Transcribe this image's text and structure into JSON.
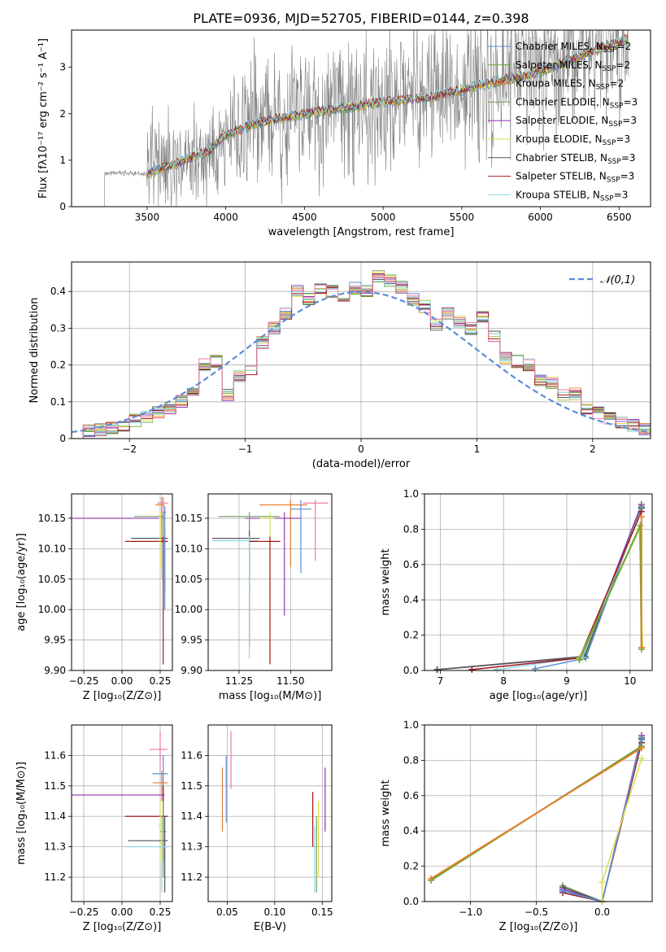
{
  "title": "PLATE=0936, MJD=52705, FIBERID=0144, z=0.398",
  "colors": {
    "Chabrier MILES": "#5b8cd6",
    "Salpeter MILES": "#6aa832",
    "Kroupa MILES": "#e67e2e",
    "Chabrier ELODIE": "#7a9e5f",
    "Salpeter ELODIE": "#8e35b8",
    "Kroupa ELODIE": "#d8e04a",
    "Chabrier STELIB": "#555555",
    "Salpeter STELIB": "#a01818",
    "Kroupa STELIB": "#8ed8e8",
    "pink": "#f07aa8",
    "data": "#808080",
    "normal": "#5b8cd6"
  },
  "chart_data": [
    {
      "type": "line",
      "xlabel": "wavelength [Angstrom, rest frame]",
      "ylabel": "Flux [fλ10⁻¹⁷ erg cm⁻² s⁻¹ A⁻¹]",
      "xlim": [
        3020,
        6700
      ],
      "ylim": [
        0,
        3.8
      ],
      "xticks": [
        3500,
        4000,
        4500,
        5000,
        5500,
        6000,
        6500
      ],
      "yticks": [
        0,
        1,
        2,
        3
      ],
      "legend_position": "top-right",
      "legend": [
        {
          "label": "Chabrier MILES, N",
          "sub": "SSP",
          "tail": "=2",
          "key": "Chabrier MILES"
        },
        {
          "label": "Salpeter MILES, N",
          "sub": "SSP",
          "tail": "=2",
          "key": "Salpeter MILES"
        },
        {
          "label": "Kroupa MILES, N",
          "sub": "SSP",
          "tail": "=2",
          "key": "Kroupa MILES"
        },
        {
          "label": "Chabrier ELODIE, N",
          "sub": "SSP",
          "tail": "=3",
          "key": "Chabrier ELODIE"
        },
        {
          "label": "Salpeter ELODIE, N",
          "sub": "SSP",
          "tail": "=3",
          "key": "Salpeter ELODIE"
        },
        {
          "label": "Kroupa ELODIE, N",
          "sub": "SSP",
          "tail": "=3",
          "key": "Kroupa ELODIE"
        },
        {
          "label": "Chabrier STELIB, N",
          "sub": "SSP",
          "tail": "=3",
          "key": "Chabrier STELIB"
        },
        {
          "label": "Salpeter STELIB, N",
          "sub": "SSP",
          "tail": "=3",
          "key": "Salpeter STELIB"
        },
        {
          "label": "Kroupa STELIB, N",
          "sub": "SSP",
          "tail": "=3",
          "key": "Kroupa STELIB"
        }
      ],
      "model_trend": [
        [
          3230,
          0.72
        ],
        [
          3500,
          0.72
        ],
        [
          3700,
          0.95
        ],
        [
          3900,
          1.2
        ],
        [
          4000,
          1.55
        ],
        [
          4200,
          1.8
        ],
        [
          4500,
          2.0
        ],
        [
          4800,
          2.15
        ],
        [
          5000,
          2.25
        ],
        [
          5300,
          2.35
        ],
        [
          5600,
          2.6
        ],
        [
          6000,
          2.9
        ],
        [
          6300,
          3.3
        ],
        [
          6550,
          3.6
        ]
      ]
    },
    {
      "type": "line",
      "xlabel": "(data-model)/error",
      "ylabel": "Normed distribution",
      "xlim": [
        -2.5,
        2.5
      ],
      "ylim": [
        0,
        0.48
      ],
      "xticks": [
        -2,
        -1,
        0,
        1,
        2
      ],
      "yticks": [
        0.0,
        0.1,
        0.2,
        0.3,
        0.4
      ],
      "legend_label": "𝒩(0,1)",
      "hist_bins": [
        -2.5,
        -2.4,
        -2.3,
        -2.2,
        -2.1,
        -2.0,
        -1.9,
        -1.8,
        -1.7,
        -1.6,
        -1.5,
        -1.4,
        -1.3,
        -1.2,
        -1.1,
        -1.0,
        -0.9,
        -0.8,
        -0.7,
        -0.6,
        -0.5,
        -0.4,
        -0.3,
        -0.2,
        -0.1,
        0.0,
        0.1,
        0.2,
        0.3,
        0.4,
        0.5,
        0.6,
        0.7,
        0.8,
        0.9,
        1.0,
        1.1,
        1.2,
        1.3,
        1.4,
        1.5,
        1.6,
        1.7,
        1.8,
        1.9,
        2.0,
        2.1,
        2.2,
        2.3,
        2.4,
        2.5
      ],
      "hist_values": [
        0.015,
        0.02,
        0.025,
        0.03,
        0.035,
        0.05,
        0.06,
        0.07,
        0.08,
        0.1,
        0.13,
        0.2,
        0.21,
        0.12,
        0.17,
        0.19,
        0.26,
        0.3,
        0.34,
        0.4,
        0.38,
        0.41,
        0.4,
        0.38,
        0.41,
        0.4,
        0.44,
        0.43,
        0.41,
        0.38,
        0.36,
        0.31,
        0.34,
        0.32,
        0.3,
        0.33,
        0.28,
        0.22,
        0.21,
        0.2,
        0.16,
        0.15,
        0.12,
        0.12,
        0.08,
        0.07,
        0.055,
        0.045,
        0.035,
        0.025
      ]
    },
    {
      "type": "scatter",
      "xlabel": "Z [log₁₀(Z/Z⊙)]",
      "ylabel": "age  [log₁₀(age/yr)]",
      "xlim": [
        -0.33,
        0.33
      ],
      "ylim": [
        9.9,
        10.19
      ],
      "xticks": [
        -0.25,
        0.0,
        0.25
      ],
      "xticklabels": [
        "−0.25",
        "0.00",
        "0.25"
      ],
      "yticks": [
        9.9,
        9.95,
        10.0,
        10.05,
        10.1,
        10.15
      ],
      "yticklabels": [
        "9.90",
        "9.95",
        "10.00",
        "10.05",
        "10.10",
        "10.15"
      ],
      "points": [
        {
          "c": "Salpeter ELODIE",
          "x": 0.28,
          "y": 10.15,
          "xl": -0.33,
          "xh": 0.28,
          "yl": 10.15,
          "yh": 10.15
        },
        {
          "c": "pink",
          "x": 0.27,
          "y": 10.175,
          "xl": 0.23,
          "xh": 0.3,
          "yl": 10.12,
          "yh": 10.185
        },
        {
          "c": "Kroupa MILES",
          "x": 0.26,
          "y": 10.172,
          "xl": 0.22,
          "xh": 0.28,
          "yl": 10.07,
          "yh": 10.185
        },
        {
          "c": "Chabrier ELODIE",
          "x": 0.27,
          "y": 10.153,
          "xl": 0.08,
          "xh": 0.28,
          "yl": 10.04,
          "yh": 10.16
        },
        {
          "c": "Chabrier STELIB",
          "x": 0.28,
          "y": 10.117,
          "xl": 0.06,
          "xh": 0.3,
          "yl": 10.03,
          "yh": 10.13
        },
        {
          "c": "Salpeter STELIB",
          "x": 0.27,
          "y": 10.112,
          "xl": 0.02,
          "xh": 0.3,
          "yl": 9.91,
          "yh": 10.12
        },
        {
          "c": "Kroupa ELODIE",
          "x": 0.25,
          "y": 10.15,
          "xl": 0.24,
          "xh": 0.26,
          "yl": 10.07,
          "yh": 10.16
        },
        {
          "c": "Chabrier MILES",
          "x": 0.28,
          "y": 10.16,
          "xl": 0.27,
          "xh": 0.29,
          "yl": 10.0,
          "yh": 10.17
        },
        {
          "c": "Kroupa STELIB",
          "x": 0.26,
          "y": 10.1,
          "xl": 0.25,
          "xh": 0.27,
          "yl": 10.05,
          "yh": 10.11
        }
      ]
    },
    {
      "type": "scatter",
      "xlabel": "mass [log₁₀(M/M⊙)]",
      "xlim": [
        11.1,
        11.7
      ],
      "ylim": [
        9.9,
        10.19
      ],
      "xticks": [
        11.25,
        11.5
      ],
      "xticklabels": [
        "11.25",
        "11.50"
      ],
      "yticks": [
        9.9,
        9.95,
        10.0,
        10.05,
        10.1,
        10.15
      ],
      "yticklabels": [
        "9.90",
        "9.95",
        "10.00",
        "10.05",
        "10.10",
        "10.15"
      ],
      "points": [
        {
          "c": "pink",
          "x": 11.62,
          "y": 10.175,
          "xl": 11.56,
          "xh": 11.68,
          "yl": 10.08,
          "yh": 10.18
        },
        {
          "c": "Kroupa MILES",
          "x": 11.5,
          "y": 10.172,
          "xl": 11.35,
          "xh": 11.58,
          "yl": 10.07,
          "yh": 10.18
        },
        {
          "c": "Chabrier MILES",
          "x": 11.55,
          "y": 10.165,
          "xl": 11.5,
          "xh": 11.6,
          "yl": 10.06,
          "yh": 10.18
        },
        {
          "c": "Salpeter ELODIE",
          "x": 11.47,
          "y": 10.15,
          "xl": 11.28,
          "xh": 11.55,
          "yl": 9.99,
          "yh": 10.16
        },
        {
          "c": "Chabrier ELODIE",
          "x": 11.3,
          "y": 10.153,
          "xl": 11.15,
          "xh": 11.45,
          "yl": 10.03,
          "yh": 10.16
        },
        {
          "c": "Kroupa ELODIE",
          "x": 11.4,
          "y": 10.15,
          "xl": 11.35,
          "xh": 11.42,
          "yl": 10.02,
          "yh": 10.16
        },
        {
          "c": "Chabrier STELIB",
          "x": 11.3,
          "y": 10.117,
          "xl": 11.12,
          "xh": 11.35,
          "yl": 9.94,
          "yh": 10.13
        },
        {
          "c": "Kroupa STELIB",
          "x": 11.3,
          "y": 10.113,
          "xl": 11.12,
          "xh": 11.34,
          "yl": 9.92,
          "yh": 10.12
        },
        {
          "c": "Salpeter STELIB",
          "x": 11.4,
          "y": 10.112,
          "xl": 11.3,
          "xh": 11.45,
          "yl": 9.91,
          "yh": 10.12
        }
      ]
    },
    {
      "type": "line",
      "xlabel": "age  [log₁₀(age/yr)]",
      "ylabel": "mass weight",
      "xlim": [
        6.75,
        10.35
      ],
      "ylim": [
        0,
        1.0
      ],
      "xticks": [
        7,
        8,
        9,
        10
      ],
      "yticks": [
        0.0,
        0.2,
        0.4,
        0.6,
        0.8,
        1.0
      ],
      "yticklabels": [
        "0.0",
        "0.2",
        "0.4",
        "0.6",
        "0.8",
        "1.0"
      ],
      "series": [
        {
          "c": "Salpeter ELODIE",
          "x": [
            6.95,
            9.25,
            10.18
          ],
          "y": [
            0.005,
            0.075,
            0.94
          ]
        },
        {
          "c": "Chabrier ELODIE",
          "x": [
            6.95,
            9.3,
            10.18
          ],
          "y": [
            0.005,
            0.08,
            0.93
          ]
        },
        {
          "c": "Chabrier MILES",
          "x": [
            8.5,
            9.3,
            10.18
          ],
          "y": [
            0.01,
            0.07,
            0.925
          ]
        },
        {
          "c": "Chabrier STELIB",
          "x": [
            6.95,
            9.28,
            10.18
          ],
          "y": [
            0.004,
            0.08,
            0.92
          ]
        },
        {
          "c": "Kroupa STELIB",
          "x": [
            7.9,
            9.25,
            10.18
          ],
          "y": [
            0.005,
            0.075,
            0.91
          ]
        },
        {
          "c": "Salpeter STELIB",
          "x": [
            7.5,
            9.2,
            10.18
          ],
          "y": [
            0.005,
            0.07,
            0.9
          ]
        },
        {
          "c": "Kroupa ELODIE",
          "x": [
            9.2,
            10.15,
            10.2
          ],
          "y": [
            0.07,
            0.8,
            0.13
          ]
        },
        {
          "c": "Salpeter MILES",
          "x": [
            9.2,
            10.16,
            10.18
          ],
          "y": [
            0.06,
            0.82,
            0.12
          ]
        },
        {
          "c": "Kroupa MILES",
          "x": [
            10.18,
            10.18
          ],
          "y": [
            0.87,
            0.13
          ]
        }
      ]
    },
    {
      "type": "scatter",
      "xlabel": "Z [log₁₀(Z/Z⊙)]",
      "ylabel": "mass [log₁₀(M/M⊙)]",
      "xlim": [
        -0.33,
        0.33
      ],
      "ylim": [
        11.12,
        11.7
      ],
      "xticks": [
        -0.25,
        0.0,
        0.25
      ],
      "xticklabels": [
        "−0.25",
        "0.00",
        "0.25"
      ],
      "yticks": [
        11.2,
        11.3,
        11.4,
        11.5,
        11.6
      ],
      "yticklabels": [
        "11.2",
        "11.3",
        "11.4",
        "11.5",
        "11.6"
      ],
      "points": [
        {
          "c": "pink",
          "x": 0.25,
          "y": 11.62,
          "xl": 0.18,
          "xh": 0.3,
          "yl": 11.55,
          "yh": 11.68
        },
        {
          "c": "Chabrier MILES",
          "x": 0.27,
          "y": 11.54,
          "xl": 0.2,
          "xh": 0.3,
          "yl": 11.45,
          "yh": 11.6
        },
        {
          "c": "Kroupa MILES",
          "x": 0.26,
          "y": 11.51,
          "xl": 0.2,
          "xh": 0.3,
          "yl": 11.45,
          "yh": 11.55
        },
        {
          "c": "Salpeter ELODIE",
          "x": 0.28,
          "y": 11.47,
          "xl": -0.33,
          "xh": 0.28,
          "yl": 11.47,
          "yh": 11.47
        },
        {
          "c": "Salpeter STELIB",
          "x": 0.27,
          "y": 11.4,
          "xl": 0.02,
          "xh": 0.3,
          "yl": 11.25,
          "yh": 11.5
        },
        {
          "c": "Kroupa ELODIE",
          "x": 0.25,
          "y": 11.37,
          "xl": 0.24,
          "xh": 0.26,
          "yl": 11.25,
          "yh": 11.45
        },
        {
          "c": "Chabrier ELODIE",
          "x": 0.27,
          "y": 11.35,
          "xl": 0.25,
          "xh": 0.29,
          "yl": 11.2,
          "yh": 11.45
        },
        {
          "c": "Chabrier STELIB",
          "x": 0.28,
          "y": 11.32,
          "xl": 0.04,
          "xh": 0.3,
          "yl": 11.15,
          "yh": 11.4
        },
        {
          "c": "Kroupa STELIB",
          "x": 0.26,
          "y": 11.3,
          "xl": 0.02,
          "xh": 0.3,
          "yl": 11.15,
          "yh": 11.4
        }
      ]
    },
    {
      "type": "scatter",
      "xlabel": "E(B-V)",
      "xlim": [
        0.03,
        0.16
      ],
      "ylim": [
        11.12,
        11.7
      ],
      "xticks": [
        0.05,
        0.1,
        0.15
      ],
      "xticklabels": [
        "0.05",
        "0.10",
        "0.15"
      ],
      "yticks": [
        11.2,
        11.3,
        11.4,
        11.5,
        11.6
      ],
      "yticklabels": [
        "11.2",
        "11.3",
        "11.4",
        "11.5",
        "11.6"
      ],
      "points": [
        {
          "c": "Kroupa MILES",
          "x": 0.045,
          "y": 11.45,
          "xl": 0.045,
          "xh": 0.045,
          "yl": 11.35,
          "yh": 11.56
        },
        {
          "c": "Chabrier MILES",
          "x": 0.049,
          "y": 11.5,
          "xl": 0.049,
          "xh": 0.049,
          "yl": 11.38,
          "yh": 11.6
        },
        {
          "c": "pink",
          "x": 0.054,
          "y": 11.58,
          "xl": 0.054,
          "xh": 0.054,
          "yl": 11.49,
          "yh": 11.68
        },
        {
          "c": "Salpeter STELIB",
          "x": 0.14,
          "y": 11.4,
          "xl": 0.14,
          "xh": 0.14,
          "yl": 11.3,
          "yh": 11.48
        },
        {
          "c": "Kroupa STELIB",
          "x": 0.142,
          "y": 11.27,
          "xl": 0.142,
          "xh": 0.142,
          "yl": 11.15,
          "yh": 11.37
        },
        {
          "c": "Chabrier ELODIE",
          "x": 0.144,
          "y": 11.3,
          "xl": 0.144,
          "xh": 0.144,
          "yl": 11.15,
          "yh": 11.4
        },
        {
          "c": "Kroupa ELODIE",
          "x": 0.146,
          "y": 11.32,
          "xl": 0.146,
          "xh": 0.146,
          "yl": 11.2,
          "yh": 11.45
        },
        {
          "c": "Salpeter ELODIE",
          "x": 0.153,
          "y": 11.45,
          "xl": 0.153,
          "xh": 0.153,
          "yl": 11.35,
          "yh": 11.56
        }
      ]
    },
    {
      "type": "line",
      "xlabel": "Z [log₁₀(Z/Z⊙)]",
      "ylabel": "mass weight",
      "xlim": [
        -1.35,
        0.38
      ],
      "ylim": [
        0,
        1.0
      ],
      "xticks": [
        -1.0,
        -0.5,
        0.0
      ],
      "xticklabels": [
        "−1.0",
        "−0.5",
        "0.0"
      ],
      "yticks": [
        0.0,
        0.2,
        0.4,
        0.6,
        0.8,
        1.0
      ],
      "yticklabels": [
        "0.0",
        "0.2",
        "0.4",
        "0.6",
        "0.8",
        "1.0"
      ],
      "series": [
        {
          "c": "Salpeter ELODIE",
          "x": [
            -0.3,
            0.0,
            0.3
          ],
          "y": [
            0.07,
            0.0,
            0.94
          ]
        },
        {
          "c": "Chabrier ELODIE",
          "x": [
            -0.3,
            0.0,
            0.3
          ],
          "y": [
            0.09,
            0.0,
            0.93
          ]
        },
        {
          "c": "Chabrier STELIB",
          "x": [
            -0.3,
            0.0,
            0.3
          ],
          "y": [
            0.08,
            0.0,
            0.92
          ]
        },
        {
          "c": "Kroupa STELIB",
          "x": [
            -0.3,
            0.0,
            0.3
          ],
          "y": [
            0.06,
            0.0,
            0.91
          ]
        },
        {
          "c": "Salpeter STELIB",
          "x": [
            -0.3,
            0.0,
            0.3
          ],
          "y": [
            0.05,
            0.0,
            0.9
          ]
        },
        {
          "c": "Chabrier MILES",
          "x": [
            -0.3,
            0.0,
            0.3
          ],
          "y": [
            0.06,
            0.0,
            0.925
          ]
        },
        {
          "c": "Kroupa ELODIE",
          "x": [
            0.0,
            0.0,
            0.3
          ],
          "y": [
            0.0,
            0.11,
            0.81
          ]
        },
        {
          "c": "Salpeter MILES",
          "x": [
            -1.3,
            0.3
          ],
          "y": [
            0.12,
            0.88
          ]
        },
        {
          "c": "Kroupa MILES",
          "x": [
            -1.3,
            0.3
          ],
          "y": [
            0.13,
            0.87
          ]
        }
      ]
    }
  ]
}
